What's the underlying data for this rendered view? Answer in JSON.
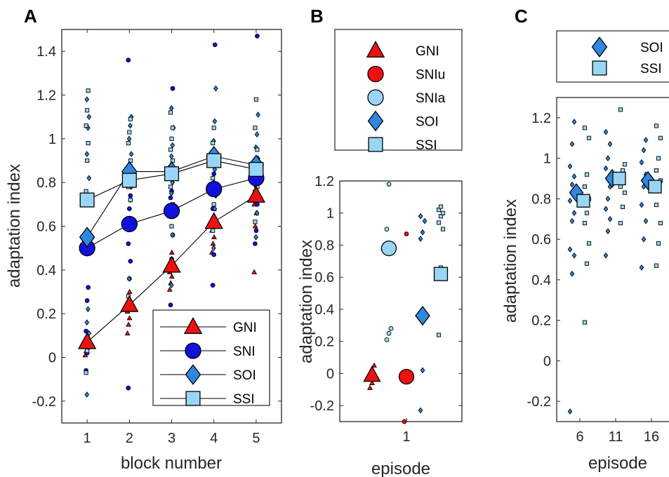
{
  "colors": {
    "GNI": "#ee1111",
    "SNI": "#1111dd",
    "SNIu": "#ee1111",
    "SNIa": "#99d6f5",
    "SOI": "#2f88e0",
    "SSI": "#99d6f5"
  },
  "chart_data": [
    {
      "panel_label": "A",
      "type": "scatter",
      "xlabel": "block number",
      "ylabel": "adaptation index",
      "xticks": [
        "1",
        "2",
        "3",
        "4",
        "5"
      ],
      "yticks": [
        "-0.2",
        "0",
        "0.2",
        "0.4",
        "0.6",
        "0.8",
        "1",
        "1.2",
        "1.4"
      ],
      "xlim": [
        0.4,
        5.6
      ],
      "ylim": [
        -0.3,
        1.5
      ],
      "legend": {
        "position": "bottom-right",
        "entries": [
          "GNI",
          "SNI",
          "SOI",
          "SSI"
        ]
      },
      "series": [
        {
          "name": "GNI",
          "marker": "triangle",
          "x": [
            1,
            2,
            3,
            4,
            5
          ],
          "mean": [
            0.07,
            0.24,
            0.42,
            0.62,
            0.74
          ],
          "points": [
            [
              0.01,
              0.03,
              0.05,
              0.06,
              0.08,
              0.1
            ],
            [
              0.11,
              0.15,
              0.18,
              0.21,
              0.26,
              0.3
            ],
            [
              0.31,
              0.34,
              0.37,
              0.39,
              0.44,
              0.48
            ],
            [
              0.48,
              0.52,
              0.55,
              0.58,
              0.64,
              0.68
            ],
            [
              0.39,
              0.6,
              0.66,
              0.7,
              0.76,
              0.8
            ]
          ]
        },
        {
          "name": "SNI",
          "marker": "circle",
          "x": [
            1,
            2,
            3,
            4,
            5
          ],
          "mean": [
            0.5,
            0.61,
            0.67,
            0.77,
            0.82
          ],
          "points": [
            [
              -0.06,
              0.02,
              0.05,
              0.12,
              0.26,
              0.32
            ],
            [
              -0.14,
              0.36,
              0.44,
              0.52,
              0.68,
              0.74,
              1.36
            ],
            [
              0.24,
              0.45,
              0.56,
              0.73,
              0.76,
              1.23
            ],
            [
              0.33,
              0.47,
              0.61,
              0.68,
              0.84,
              1.43
            ],
            [
              0.52,
              0.58,
              0.7,
              0.76,
              0.9,
              1.47
            ]
          ]
        },
        {
          "name": "SOI",
          "marker": "diamond",
          "x": [
            1,
            2,
            3,
            4,
            5
          ],
          "mean": [
            0.55,
            0.85,
            0.85,
            0.92,
            0.88
          ],
          "points": [
            [
              -0.17,
              0.04,
              0.11,
              0.16,
              0.22,
              0.82,
              0.93,
              1.05,
              1.1,
              1.18
            ],
            [
              0.36,
              0.72,
              0.78,
              0.83,
              0.88,
              0.93,
              1.0,
              1.06,
              1.1
            ],
            [
              0.33,
              0.56,
              0.66,
              0.75,
              0.8,
              0.87,
              0.92,
              0.97,
              1.05,
              1.14
            ],
            [
              0.5,
              0.68,
              0.74,
              0.8,
              0.86,
              0.94,
              0.99,
              1.08,
              1.23
            ],
            [
              0.55,
              0.66,
              0.72,
              0.78,
              0.86,
              0.91,
              0.96,
              1.02,
              1.11
            ]
          ]
        },
        {
          "name": "SSI",
          "marker": "square",
          "x": [
            1,
            2,
            3,
            4,
            5
          ],
          "mean": [
            0.72,
            0.81,
            0.84,
            0.9,
            0.86
          ],
          "points": [
            [
              -0.07,
              0.03,
              0.7,
              0.76,
              0.9,
              0.98,
              1.06,
              1.13,
              1.22
            ],
            [
              0.28,
              0.62,
              0.72,
              0.78,
              0.84,
              0.9,
              0.98,
              1.03,
              1.09
            ],
            [
              0.4,
              0.6,
              0.7,
              0.78,
              0.82,
              0.9,
              0.95,
              1.0,
              1.05,
              1.12
            ],
            [
              0.58,
              0.7,
              0.76,
              0.82,
              0.88,
              0.93,
              0.98,
              1.05
            ],
            [
              0.62,
              0.72,
              0.78,
              0.84,
              0.9,
              0.95,
              1.05,
              1.18
            ]
          ]
        }
      ]
    },
    {
      "panel_label": "B",
      "type": "scatter",
      "xlabel": "episode",
      "ylabel": "adaptation index",
      "xticks": [
        "1"
      ],
      "yticks": [
        "-0.2",
        "0",
        "0.2",
        "0.4",
        "0.6",
        "0.8",
        "1",
        "1.2"
      ],
      "ylim": [
        -0.3,
        1.2
      ],
      "legend": {
        "position": "above",
        "entries": [
          "GNI",
          "SNIu",
          "SNIa",
          "SOI",
          "SSI"
        ]
      },
      "series": [
        {
          "name": "GNI",
          "marker": "triangle",
          "mean": -0.01,
          "points": [
            -0.09,
            -0.06,
            -0.03,
            0.0,
            0.03,
            0.05
          ]
        },
        {
          "name": "SNIu",
          "marker": "circle",
          "mean": -0.02,
          "points": [
            -0.3,
            -0.05,
            -0.02,
            0.0,
            0.87
          ]
        },
        {
          "name": "SNIa",
          "marker": "circle",
          "mean": 0.78,
          "points": [
            0.21,
            0.25,
            0.28,
            0.9,
            1.18
          ]
        },
        {
          "name": "SOI",
          "marker": "diamond",
          "mean": 0.36,
          "points": [
            -0.23,
            0.02,
            0.38,
            0.84,
            0.88,
            0.95,
            0.98
          ]
        },
        {
          "name": "SSI",
          "marker": "square",
          "mean": 0.62,
          "points": [
            0.24,
            0.66,
            0.9,
            0.94,
            0.98,
            1.0,
            1.02,
            1.04
          ]
        }
      ]
    },
    {
      "panel_label": "C",
      "type": "scatter",
      "xlabel": "episode",
      "ylabel": "adaptation index",
      "xticks": [
        "6",
        "11",
        "16"
      ],
      "yticks": [
        "-0.2",
        "0",
        "0.2",
        "0.4",
        "0.6",
        "0.8",
        "1",
        "1.2"
      ],
      "ylim": [
        -0.3,
        1.3
      ],
      "legend": {
        "position": "above",
        "entries": [
          "SOI",
          "SSI"
        ]
      },
      "series": [
        {
          "name": "SOI",
          "marker": "diamond",
          "x": [
            6,
            11,
            16
          ],
          "mean": [
            0.83,
            0.9,
            0.89
          ],
          "points": [
            [
              -0.25,
              0.43,
              0.52,
              0.55,
              0.69,
              0.73,
              0.79,
              0.87,
              0.91,
              0.96,
              1.07,
              1.18
            ],
            [
              0.52,
              0.64,
              0.7,
              0.75,
              0.8,
              0.86,
              0.95,
              1.0,
              1.07,
              1.13
            ],
            [
              0.46,
              0.6,
              0.69,
              0.77,
              0.86,
              0.92,
              0.98,
              1.04,
              1.09
            ]
          ]
        },
        {
          "name": "SSI",
          "marker": "square",
          "x": [
            6,
            11,
            16
          ],
          "mean": [
            0.79,
            0.9,
            0.86
          ],
          "points": [
            [
              0.19,
              0.48,
              0.58,
              0.68,
              0.73,
              0.8,
              0.86,
              0.92,
              1.1,
              1.15
            ],
            [
              0.68,
              0.76,
              0.83,
              0.86,
              0.94,
              0.97,
              1.24
            ],
            [
              0.47,
              0.58,
              0.68,
              0.77,
              0.84,
              0.89,
              0.94,
              1.0,
              1.1,
              1.16
            ]
          ]
        }
      ]
    }
  ]
}
